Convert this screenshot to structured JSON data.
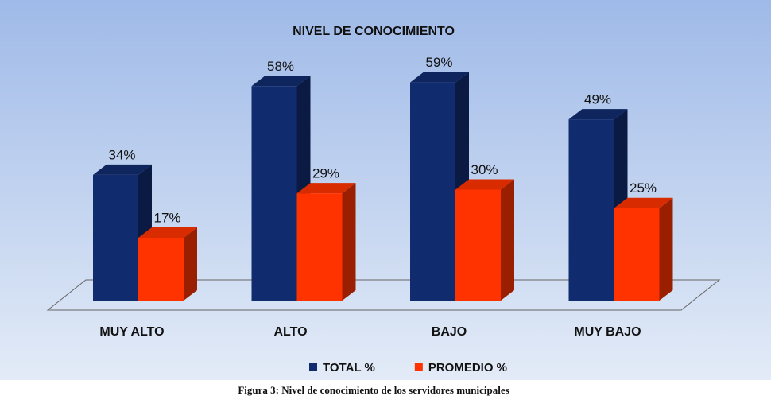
{
  "chart_data": {
    "type": "bar3d",
    "title": "NIVEL DE CONOCIMIENTO",
    "categories": [
      "MUY ALTO",
      "ALTO",
      "BAJO",
      "MUY BAJO"
    ],
    "series": [
      {
        "name": "TOTAL %",
        "color": "#102c6f",
        "values": [
          34,
          58,
          59,
          49
        ],
        "value_labels": [
          "34%",
          "58%",
          "59%",
          "49%"
        ]
      },
      {
        "name": "PROMEDIO %",
        "color": "#ff3300",
        "values": [
          17,
          29,
          30,
          25
        ],
        "value_labels": [
          "17%",
          "29%",
          "30%",
          "25%"
        ]
      }
    ],
    "legend": "bottom",
    "caption": "Figura 3: Nivel  de conocimiento de los servidores municipales"
  }
}
